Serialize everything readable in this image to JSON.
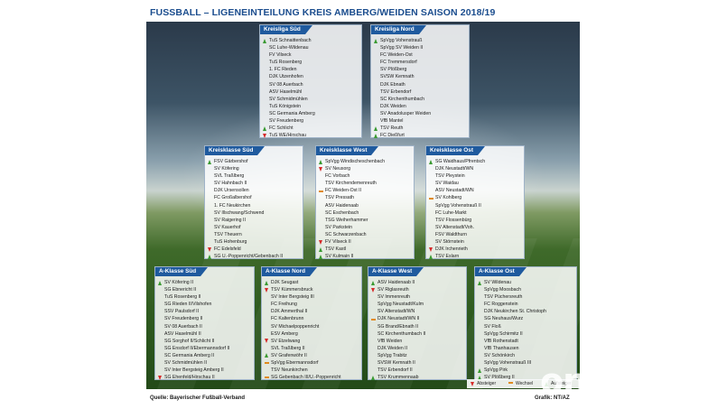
{
  "title": "FUSSBALL – LIGENEINTEILUNG KREIS AMBERG/WEIDEN SAISON 2018/19",
  "source": "Quelle: Bayerischer Fußball-Verband",
  "credit": "Grafik: NT/AZ",
  "watermark": "onetz.de",
  "colors": {
    "header": "#1f5a9e",
    "aufsteiger": "#3a9a32",
    "absteiger": "#d62a2a",
    "wechsel": "#e08a1e"
  },
  "legend": {
    "absteiger": "Absteiger",
    "wechsel": "Wechsel",
    "aufsteiger": "Aufsteiger"
  },
  "leagues": [
    {
      "name": "Kreisliga Süd",
      "teams": [
        {
          "t": "TuS Schnaittenbach",
          "m": "up"
        },
        {
          "t": "SC Luhe-Wildenau",
          "m": ""
        },
        {
          "t": "FV Vilseck",
          "m": ""
        },
        {
          "t": "TuS Rosenberg",
          "m": ""
        },
        {
          "t": "1. FC Rieden",
          "m": ""
        },
        {
          "t": "DJK Utzenhofen",
          "m": ""
        },
        {
          "t": "SV 08 Auerbach",
          "m": ""
        },
        {
          "t": "ASV Haselmühl",
          "m": ""
        },
        {
          "t": "SV Schmidmühlen",
          "m": ""
        },
        {
          "t": "TuS Königstein",
          "m": ""
        },
        {
          "t": "SC Germania Amberg",
          "m": ""
        },
        {
          "t": "SV Freudenberg",
          "m": ""
        },
        {
          "t": "FC Schlicht",
          "m": "up"
        },
        {
          "t": "TuS WE/Hirschau",
          "m": "down"
        }
      ]
    },
    {
      "name": "Kreisliga Nord",
      "teams": [
        {
          "t": "SpVgg Vohenstrauß",
          "m": "up"
        },
        {
          "t": "SpVgg SV Weiden II",
          "m": ""
        },
        {
          "t": "FC Weiden-Ost",
          "m": ""
        },
        {
          "t": "FC Tremmersdorf",
          "m": ""
        },
        {
          "t": "SV Plößberg",
          "m": ""
        },
        {
          "t": "SVSW Kemnath",
          "m": ""
        },
        {
          "t": "DJK Ebnath",
          "m": ""
        },
        {
          "t": "TSV Erbendorf",
          "m": ""
        },
        {
          "t": "SC Kirchenthumbach",
          "m": ""
        },
        {
          "t": "DJK Weiden",
          "m": ""
        },
        {
          "t": "SV Anadolusper Weiden",
          "m": ""
        },
        {
          "t": "VfB Mantel",
          "m": ""
        },
        {
          "t": "TSV Reuth",
          "m": "up"
        },
        {
          "t": "FC Dießfurt",
          "m": "up"
        }
      ]
    },
    {
      "name": "Kreisklasse Süd",
      "teams": [
        {
          "t": "FSV Gärbershof",
          "m": "up"
        },
        {
          "t": "SV Köfering",
          "m": ""
        },
        {
          "t": "SVL Traßlberg",
          "m": ""
        },
        {
          "t": "SV Hahnbach II",
          "m": ""
        },
        {
          "t": "DJK Ursensollen",
          "m": ""
        },
        {
          "t": "FC Großalbershof",
          "m": ""
        },
        {
          "t": "1. FC Neukirchen",
          "m": ""
        },
        {
          "t": "SV Illschwang/Schwend",
          "m": ""
        },
        {
          "t": "SV Raigering II",
          "m": ""
        },
        {
          "t": "SV Kauerhof",
          "m": ""
        },
        {
          "t": "TSV Theuern",
          "m": ""
        },
        {
          "t": "TuS Hohenburg",
          "m": ""
        },
        {
          "t": "FC Edelsfeld",
          "m": "down"
        },
        {
          "t": "SG U.-Poppenricht/Gebenbach II",
          "m": "up"
        }
      ]
    },
    {
      "name": "Kreisklasse West",
      "teams": [
        {
          "t": "SpVgg Windischeschenbach",
          "m": "up"
        },
        {
          "t": "SV Neusorg",
          "m": "down"
        },
        {
          "t": "FC Vorbach",
          "m": ""
        },
        {
          "t": "TSV Kirchendemenreuth",
          "m": ""
        },
        {
          "t": "FC Weiden-Ost II",
          "m": "swap"
        },
        {
          "t": "TSV Pressath",
          "m": ""
        },
        {
          "t": "ASV Haidenaab",
          "m": ""
        },
        {
          "t": "SC Eschenbach",
          "m": ""
        },
        {
          "t": "TSG Weiherhammer",
          "m": ""
        },
        {
          "t": "SV Parkstein",
          "m": ""
        },
        {
          "t": "SC Schwarzenbach",
          "m": ""
        },
        {
          "t": "FV Vilseck II",
          "m": "down"
        },
        {
          "t": "TSV Kastl",
          "m": "up"
        },
        {
          "t": "SV Kulmain II",
          "m": "up"
        }
      ]
    },
    {
      "name": "Kreisklasse Ost",
      "teams": [
        {
          "t": "SG Waidhaus/Pfrentsch",
          "m": "up"
        },
        {
          "t": "DJK Neustadt/WN",
          "m": ""
        },
        {
          "t": "TSV Pleystein",
          "m": ""
        },
        {
          "t": "SV Waidau",
          "m": ""
        },
        {
          "t": "ASV Neustadt/WN",
          "m": ""
        },
        {
          "t": "SV Kohlberg",
          "m": "swap"
        },
        {
          "t": "SpVgg Vohenstrauß II",
          "m": ""
        },
        {
          "t": "FC Luhe-Markt",
          "m": ""
        },
        {
          "t": "TSV Flossenbürg",
          "m": ""
        },
        {
          "t": "SV Altenstadt/Voh.",
          "m": ""
        },
        {
          "t": "FSV Waldthurn",
          "m": ""
        },
        {
          "t": "SV Störnstein",
          "m": ""
        },
        {
          "t": "DJK Irchenrieth",
          "m": "down"
        },
        {
          "t": "TSV Eslarn",
          "m": "up"
        }
      ]
    },
    {
      "name": "A-Klasse Süd",
      "teams": [
        {
          "t": "SV Köfering II",
          "m": "up"
        },
        {
          "t": "SG Ebnericht II",
          "m": ""
        },
        {
          "t": "TuS Rosenberg II",
          "m": ""
        },
        {
          "t": "SG Rieden II/Vilshofen",
          "m": ""
        },
        {
          "t": "SSV Paulsdorf II",
          "m": ""
        },
        {
          "t": "SV Freudenberg II",
          "m": ""
        },
        {
          "t": "SV 08 Auerbach II",
          "m": ""
        },
        {
          "t": "ASV Haselmühl II",
          "m": ""
        },
        {
          "t": "SG Sorghof II/Schlicht II",
          "m": ""
        },
        {
          "t": "SG Ensdorf II/Ebermannsdorf II",
          "m": ""
        },
        {
          "t": "SC Germania Amberg II",
          "m": ""
        },
        {
          "t": "SV Schmidmühlen II",
          "m": ""
        },
        {
          "t": "SV Inter Bergsteig Amberg II",
          "m": ""
        },
        {
          "t": "SG Ehenfeld/Hirschau II",
          "m": "down"
        }
      ]
    },
    {
      "name": "A-Klasse Nord",
      "teams": [
        {
          "t": "DJK Seugast",
          "m": "up"
        },
        {
          "t": "TSV Kümmersbruck",
          "m": "down"
        },
        {
          "t": "SV Inter Bergsteig III",
          "m": ""
        },
        {
          "t": "FC Freihung",
          "m": ""
        },
        {
          "t": "DJK Ammerthal II",
          "m": ""
        },
        {
          "t": "FC Kaltenbrunn",
          "m": ""
        },
        {
          "t": "SV Michaelpoppenricht",
          "m": ""
        },
        {
          "t": "ESV Amberg",
          "m": ""
        },
        {
          "t": "SV Etzelwang",
          "m": "down"
        },
        {
          "t": "SVL Traßlberg II",
          "m": ""
        },
        {
          "t": "SV Grafenwöhr II",
          "m": "up"
        },
        {
          "t": "SpVgg Ebermannsdorf",
          "m": "swap"
        },
        {
          "t": "TSV Neunkirchen",
          "m": ""
        },
        {
          "t": "SG Gebenbach III/U.-Poppenricht",
          "m": "swap"
        }
      ]
    },
    {
      "name": "A-Klasse West",
      "teams": [
        {
          "t": "ASV Haidenaab II",
          "m": "up"
        },
        {
          "t": "SV Riglasreuth",
          "m": "down"
        },
        {
          "t": "SV Immenreuth",
          "m": ""
        },
        {
          "t": "SpVgg Neustadt/Kulm",
          "m": ""
        },
        {
          "t": "SV Altenstadt/WN",
          "m": ""
        },
        {
          "t": "DJK Neustadt/WN II",
          "m": "swap"
        },
        {
          "t": "SG Brand/Ebnath II",
          "m": ""
        },
        {
          "t": "SC Kirchenthumbach II",
          "m": ""
        },
        {
          "t": "VfB Weiden",
          "m": ""
        },
        {
          "t": "DJK Weiden II",
          "m": ""
        },
        {
          "t": "SpVgg Trabitz",
          "m": ""
        },
        {
          "t": "SVSW Kemnath II",
          "m": ""
        },
        {
          "t": "TSV Erbendorf II",
          "m": ""
        },
        {
          "t": "TSV Krummennaab",
          "m": "up"
        }
      ]
    },
    {
      "name": "A-Klasse Ost",
      "teams": [
        {
          "t": "SV Wildenau",
          "m": "up"
        },
        {
          "t": "SpVgg Moosbach",
          "m": ""
        },
        {
          "t": "TSV Püchersreuth",
          "m": ""
        },
        {
          "t": "FC Roggenstein",
          "m": ""
        },
        {
          "t": "DJK Neukirchen St. Christoph",
          "m": ""
        },
        {
          "t": "SG Neuhaus/Wurz",
          "m": ""
        },
        {
          "t": "SV Floß",
          "m": ""
        },
        {
          "t": "SpVgg Schirmitz II",
          "m": ""
        },
        {
          "t": "VfB Rothenstadt",
          "m": ""
        },
        {
          "t": "VfB Thanhausen",
          "m": ""
        },
        {
          "t": "SV Schönkirch",
          "m": ""
        },
        {
          "t": "SpVgg Vohenstrauß III",
          "m": ""
        },
        {
          "t": "SpVgg Pirk",
          "m": "up"
        },
        {
          "t": "SV Plößberg II",
          "m": "up"
        }
      ]
    }
  ]
}
